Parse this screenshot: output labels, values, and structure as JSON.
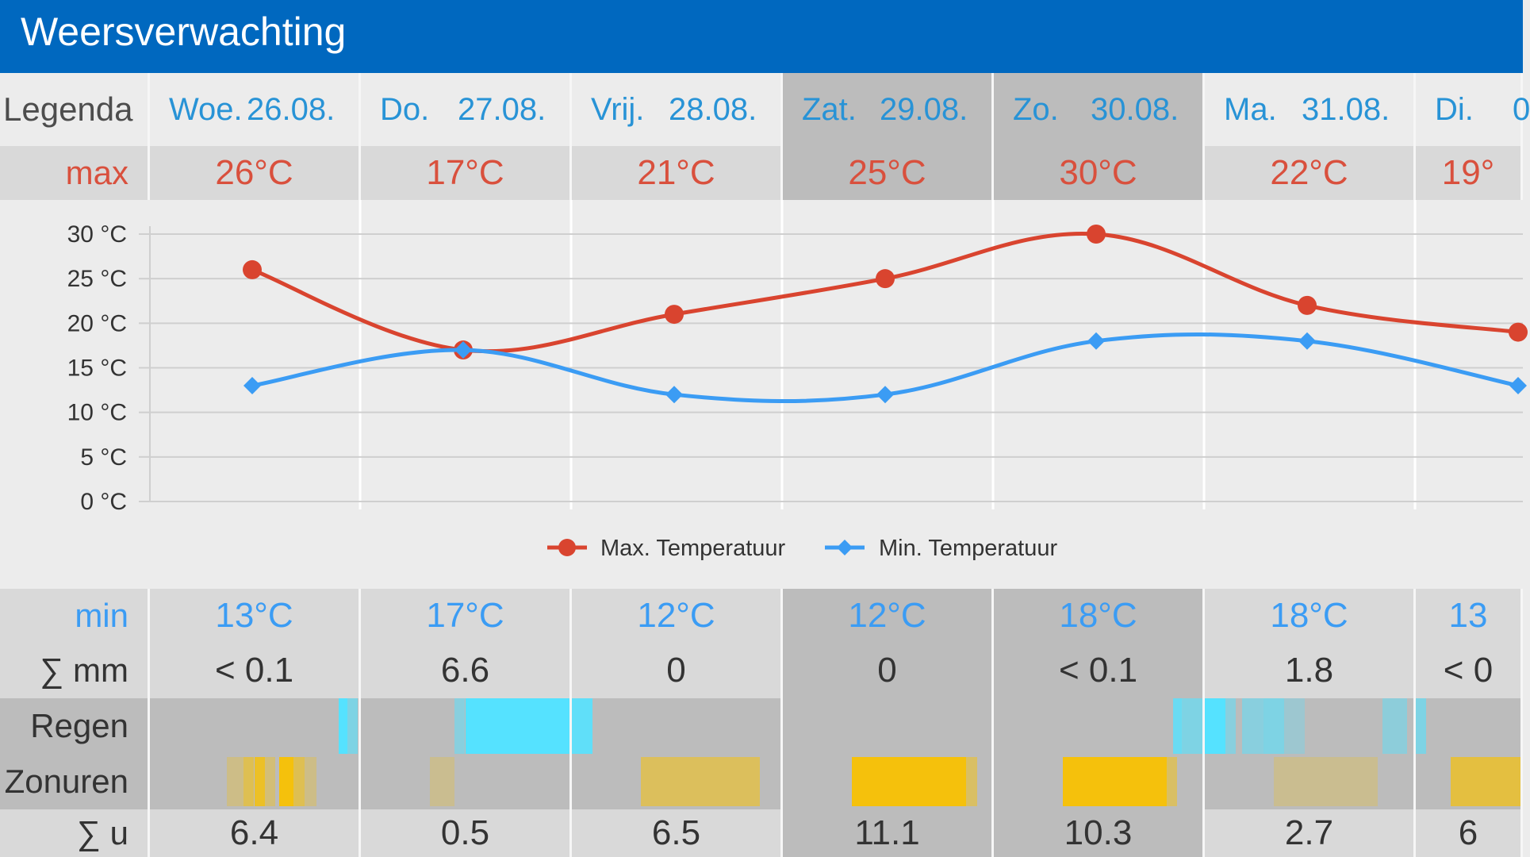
{
  "header": {
    "title": "Weersverwachting"
  },
  "legend_label": "Legenda",
  "row_labels": {
    "max": "max",
    "min": "min",
    "mm": "∑ mm",
    "regen": "Regen",
    "zonuren": "Zonuren",
    "sun_hours": "∑ u"
  },
  "days": [
    {
      "name": "Woe.",
      "date": "26.08.",
      "max": "26°C",
      "min": "13°C",
      "mm": "< 0.1",
      "sun": "6.4",
      "weekend": false
    },
    {
      "name": "Do.",
      "date": "27.08.",
      "max": "17°C",
      "min": "17°C",
      "mm": "6.6",
      "sun": "0.5",
      "weekend": false
    },
    {
      "name": "Vrij.",
      "date": "28.08.",
      "max": "21°C",
      "min": "12°C",
      "mm": "0",
      "sun": "6.5",
      "weekend": false
    },
    {
      "name": "Zat.",
      "date": "29.08.",
      "max": "25°C",
      "min": "12°C",
      "mm": "0",
      "sun": "11.1",
      "weekend": true
    },
    {
      "name": "Zo.",
      "date": "30.08.",
      "max": "30°C",
      "min": "18°C",
      "mm": "< 0.1",
      "sun": "10.3",
      "weekend": true
    },
    {
      "name": "Ma.",
      "date": "31.08.",
      "max": "22°C",
      "min": "18°C",
      "mm": "1.8",
      "sun": "2.7",
      "weekend": false
    },
    {
      "name": "Di.",
      "date": "0",
      "max": "19°",
      "min": "13",
      "mm": "< 0",
      "sun": "6",
      "weekend": false
    }
  ],
  "chart_data": {
    "type": "line",
    "y_ticks": [
      "0 °C",
      "5 °C",
      "10 °C",
      "15 °C",
      "20 °C",
      "25 °C",
      "30 °C"
    ],
    "ylim": [
      0,
      30
    ],
    "grid": true,
    "legend_position": "bottom-center",
    "series": [
      {
        "name": "Max. Temperatuur",
        "color": "#d9442f",
        "values": [
          26,
          17,
          21,
          25,
          30,
          22,
          19
        ]
      },
      {
        "name": "Min. Temperatuur",
        "color": "#3b9cf4",
        "values": [
          13,
          17,
          12,
          12,
          18,
          18,
          13
        ]
      }
    ]
  },
  "colors": {
    "header": "#0068bf",
    "rain": "#55e2ff",
    "sun": "#f5c10c"
  },
  "rain_bars": [
    [
      {
        "o": 0.0,
        "c": 0
      },
      {
        "o": 0.9,
        "c": 1
      }
    ],
    [
      {
        "o": 0.5,
        "c": 1
      },
      {
        "o": 0.8,
        "c": 0
      }
    ],
    [],
    [],
    [
      {
        "o": 0.9,
        "c": 1
      }
    ],
    [
      {
        "o": 0.6,
        "c": 1
      },
      {
        "o": 0.4,
        "c": 1
      },
      {
        "o": 0.5,
        "c": 1
      },
      {
        "o": 0.2,
        "c": 1
      }
    ],
    [
      {
        "o": 0.6,
        "c": 1
      }
    ]
  ],
  "sun_bars": [
    [
      0.3,
      0.7,
      0.4,
      0.9,
      0.5
    ],
    [
      0.25
    ],
    [
      0.55,
      0.6,
      0.5
    ],
    [
      1.0
    ],
    [
      1.0
    ],
    [
      0.3,
      0.3
    ],
    [
      0.8
    ]
  ]
}
